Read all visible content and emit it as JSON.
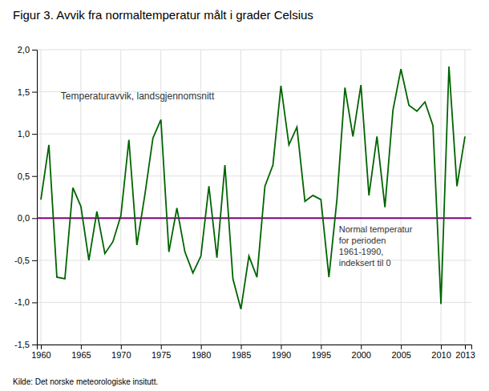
{
  "chart_data": {
    "type": "line",
    "title": "Figur 3. Avvik fra normaltemperatur målt i grader Celsius",
    "x": [
      1960,
      1961,
      1962,
      1963,
      1964,
      1965,
      1966,
      1967,
      1968,
      1969,
      1970,
      1971,
      1972,
      1973,
      1974,
      1975,
      1976,
      1977,
      1978,
      1979,
      1980,
      1981,
      1982,
      1983,
      1984,
      1985,
      1986,
      1987,
      1988,
      1989,
      1990,
      1991,
      1992,
      1993,
      1994,
      1995,
      1996,
      1997,
      1998,
      1999,
      2000,
      2001,
      2002,
      2003,
      2004,
      2005,
      2006,
      2007,
      2008,
      2009,
      2010,
      2011,
      2012,
      2013
    ],
    "values": [
      0.22,
      0.87,
      -0.7,
      -0.72,
      0.36,
      0.14,
      -0.5,
      0.08,
      -0.42,
      -0.28,
      0.03,
      0.93,
      -0.32,
      0.28,
      0.95,
      1.17,
      -0.4,
      0.12,
      -0.4,
      -0.65,
      -0.45,
      0.38,
      -0.47,
      0.63,
      -0.72,
      -1.08,
      -0.45,
      -0.7,
      0.38,
      0.63,
      1.57,
      0.87,
      1.08,
      0.2,
      0.27,
      0.22,
      -0.7,
      0.22,
      1.55,
      0.97,
      1.58,
      0.27,
      0.97,
      0.13,
      1.28,
      1.77,
      1.34,
      1.27,
      1.38,
      1.1,
      -1.02,
      1.8,
      0.38,
      0.97
    ],
    "color": "#006400",
    "xlim": [
      1959.5,
      2013.8
    ],
    "ylim": [
      -1.5,
      2.0
    ],
    "xticks": [
      1960,
      1965,
      1970,
      1975,
      1980,
      1985,
      1990,
      1995,
      2000,
      2005,
      2010,
      2013
    ],
    "yticks": [
      {
        "value": -1.5,
        "label": "-1,5"
      },
      {
        "value": -1.0,
        "label": "-1,0"
      },
      {
        "value": -0.5,
        "label": "-0,5"
      },
      {
        "value": 0.0,
        "label": "0,0"
      },
      {
        "value": 0.5,
        "label": "0,5"
      },
      {
        "value": 1.0,
        "label": "1,0"
      },
      {
        "value": 1.5,
        "label": "1,5"
      },
      {
        "value": 2.0,
        "label": "2,0"
      }
    ],
    "grid": true,
    "annotations": [
      {
        "text": "Temperaturavvik, landsgjennomsnitt"
      },
      {
        "text": "Normal temperatur\nfor perioden\n1961-1990,\nindeksert til 0",
        "y": 0,
        "color": "#800080"
      },
      {
        "text": "Kilde: Det norske meteorologiske insitutt."
      }
    ]
  }
}
